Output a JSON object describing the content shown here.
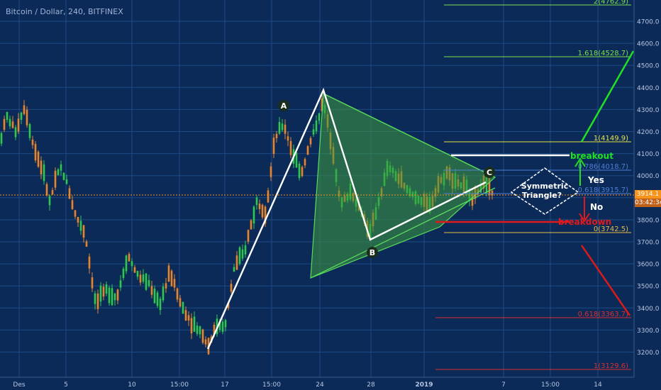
{
  "header": {
    "title": "Bitcoin / Dollar, 240, BITFINEX"
  },
  "price_axis": {
    "ticks": [
      "4700.0",
      "4600.0",
      "4500.0",
      "4400.0",
      "4300.0",
      "4200.0",
      "4100.0",
      "4000.0",
      "3900.0",
      "3800.0",
      "3700.0",
      "3600.0",
      "3500.0",
      "3400.0",
      "3300.0",
      "3200.0"
    ],
    "current_price": "3914.1",
    "countdown": "03:42:34",
    "current_price_color": "#f7931a",
    "countdown_color": "#c0621a"
  },
  "time_axis": {
    "ticks": [
      "Des",
      "5",
      "10",
      "15:00",
      "17",
      "15:00",
      "24",
      "28",
      "2019",
      "7",
      "15:00",
      "14"
    ]
  },
  "pattern_labels": {
    "a": "A",
    "b": "B",
    "c": "C"
  },
  "fib_levels": [
    {
      "label": "2(4762.9)",
      "color": "#7ee04a"
    },
    {
      "label": "1.618(4528.7)",
      "color": "#7ee04a"
    },
    {
      "label": "1(4149.9)",
      "color": "#e8e24a"
    },
    {
      "label": "0.786(4018.7)",
      "color": "#4f7fd6"
    },
    {
      "label": "0.618(3915.7)",
      "color": "#4f7fd6"
    },
    {
      "label": "0(3742.5)",
      "color": "#e8b84a"
    },
    {
      "label": "0.618(3363.7)",
      "color": "#d93030"
    },
    {
      "label": "1(3129.6)",
      "color": "#d93030"
    }
  ],
  "annotations": {
    "breakout": "breakout",
    "breakdown": "breakdown",
    "yes": "Yes",
    "no": "No",
    "diamond_line1": "Symmetric",
    "diamond_line2": "Triangle?"
  },
  "colors": {
    "background": "#0b2a58",
    "candle_up": "#2fc84a",
    "candle_down": "#e8842a",
    "triangle_fill": "#3e9b3e",
    "bull_arrow": "#22e022",
    "bear_arrow": "#e01a1a"
  },
  "chart_data": {
    "type": "candlestick",
    "symbol": "Bitcoin / Dollar",
    "interval": "240",
    "exchange": "BITFINEX",
    "ylim": [
      3150,
      4800
    ],
    "last_price": 3914.1,
    "swing_points": [
      {
        "label": "",
        "date": "Dec 14",
        "price": 3220
      },
      {
        "label": "",
        "date": "Dec 24",
        "price": 4380
      },
      {
        "label": "B",
        "date": "Dec 28",
        "price": 3720
      },
      {
        "label": "C",
        "date": "Jan 4",
        "price": 3990
      }
    ]
  }
}
